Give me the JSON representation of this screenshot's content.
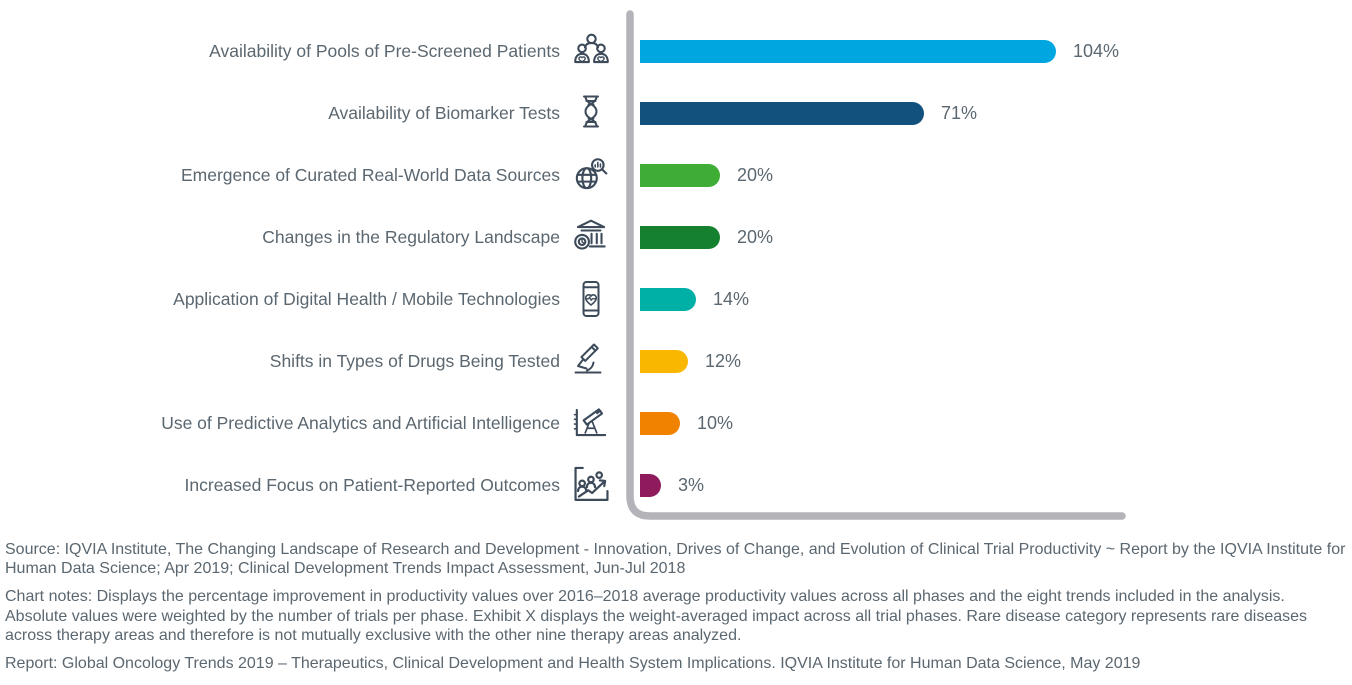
{
  "chart_data": {
    "type": "bar",
    "orientation": "horizontal",
    "title": "",
    "xlabel": "",
    "ylabel": "",
    "xlim": [
      0,
      110
    ],
    "value_suffix": "%",
    "grid": false,
    "legend": false,
    "axis_color": "#B4B3B9",
    "text_color": "#5B6770",
    "categories": [
      "Availability of Pools of Pre-Screened Patients",
      "Availability of Biomarker Tests",
      "Emergence of Curated Real-World Data Sources",
      "Changes in the Regulatory Landscape",
      "Application of Digital Health / Mobile Technologies",
      "Shifts in Types of Drugs Being Tested",
      "Use of Predictive Analytics and Artificial Intelligence",
      "Increased Focus on Patient-Reported Outcomes"
    ],
    "values": [
      104,
      71,
      20,
      20,
      14,
      12,
      10,
      3
    ],
    "rows": [
      {
        "label": "Availability of Pools of Pre-Screened Patients",
        "icon": "patients-group-icon",
        "value": 104,
        "value_label": "104%",
        "color": "#00A6E0"
      },
      {
        "label": "Availability of Biomarker Tests",
        "icon": "dna-icon",
        "value": 71,
        "value_label": "71%",
        "color": "#12507E"
      },
      {
        "label": "Emergence of Curated Real-World Data Sources",
        "icon": "globe-search-icon",
        "value": 20,
        "value_label": "20%",
        "color": "#3EAC35"
      },
      {
        "label": "Changes in the Regulatory Landscape",
        "icon": "regulatory-institution-icon",
        "value": 20,
        "value_label": "20%",
        "color": "#15812F"
      },
      {
        "label": "Application of Digital Health / Mobile Technologies",
        "icon": "mobile-health-icon",
        "value": 14,
        "value_label": "14%",
        "color": "#00B0A7"
      },
      {
        "label": "Shifts in Types of Drugs Being Tested",
        "icon": "microscope-icon",
        "value": 12,
        "value_label": "12%",
        "color": "#F9B700"
      },
      {
        "label": "Use of Predictive Analytics and Artificial Intelligence",
        "icon": "telescope-icon",
        "value": 10,
        "value_label": "10%",
        "color": "#F08200"
      },
      {
        "label": "Increased Focus on Patient-Reported Outcomes",
        "icon": "patient-outcomes-icon",
        "value": 3,
        "value_label": "3%",
        "color": "#8F1A5C"
      }
    ]
  },
  "footnotes": {
    "source": "Source: IQVIA Institute, The Changing Landscape of Research and Development - Innovation, Drives of Change, and Evolution of Clinical Trial Productivity ~ Report by the IQVIA Institute for Human Data Science; Apr 2019; Clinical Development Trends Impact Assessment, Jun-Jul 2018",
    "chart_notes": "Chart notes: Displays the percentage improvement in productivity values over 2016–2018 average productivity values across all phases and the eight trends included in the analysis. Absolute values were weighted by the number of trials per phase. Exhibit X displays the weight-averaged impact across all trial phases. Rare disease category represents rare diseases across therapy areas and therefore is not mutually exclusive with the other nine therapy areas analyzed.",
    "report": "Report: Global Oncology Trends 2019 – Therapeutics, Clinical Development and Health System Implications. IQVIA Institute for Human Data Science, May 2019"
  }
}
